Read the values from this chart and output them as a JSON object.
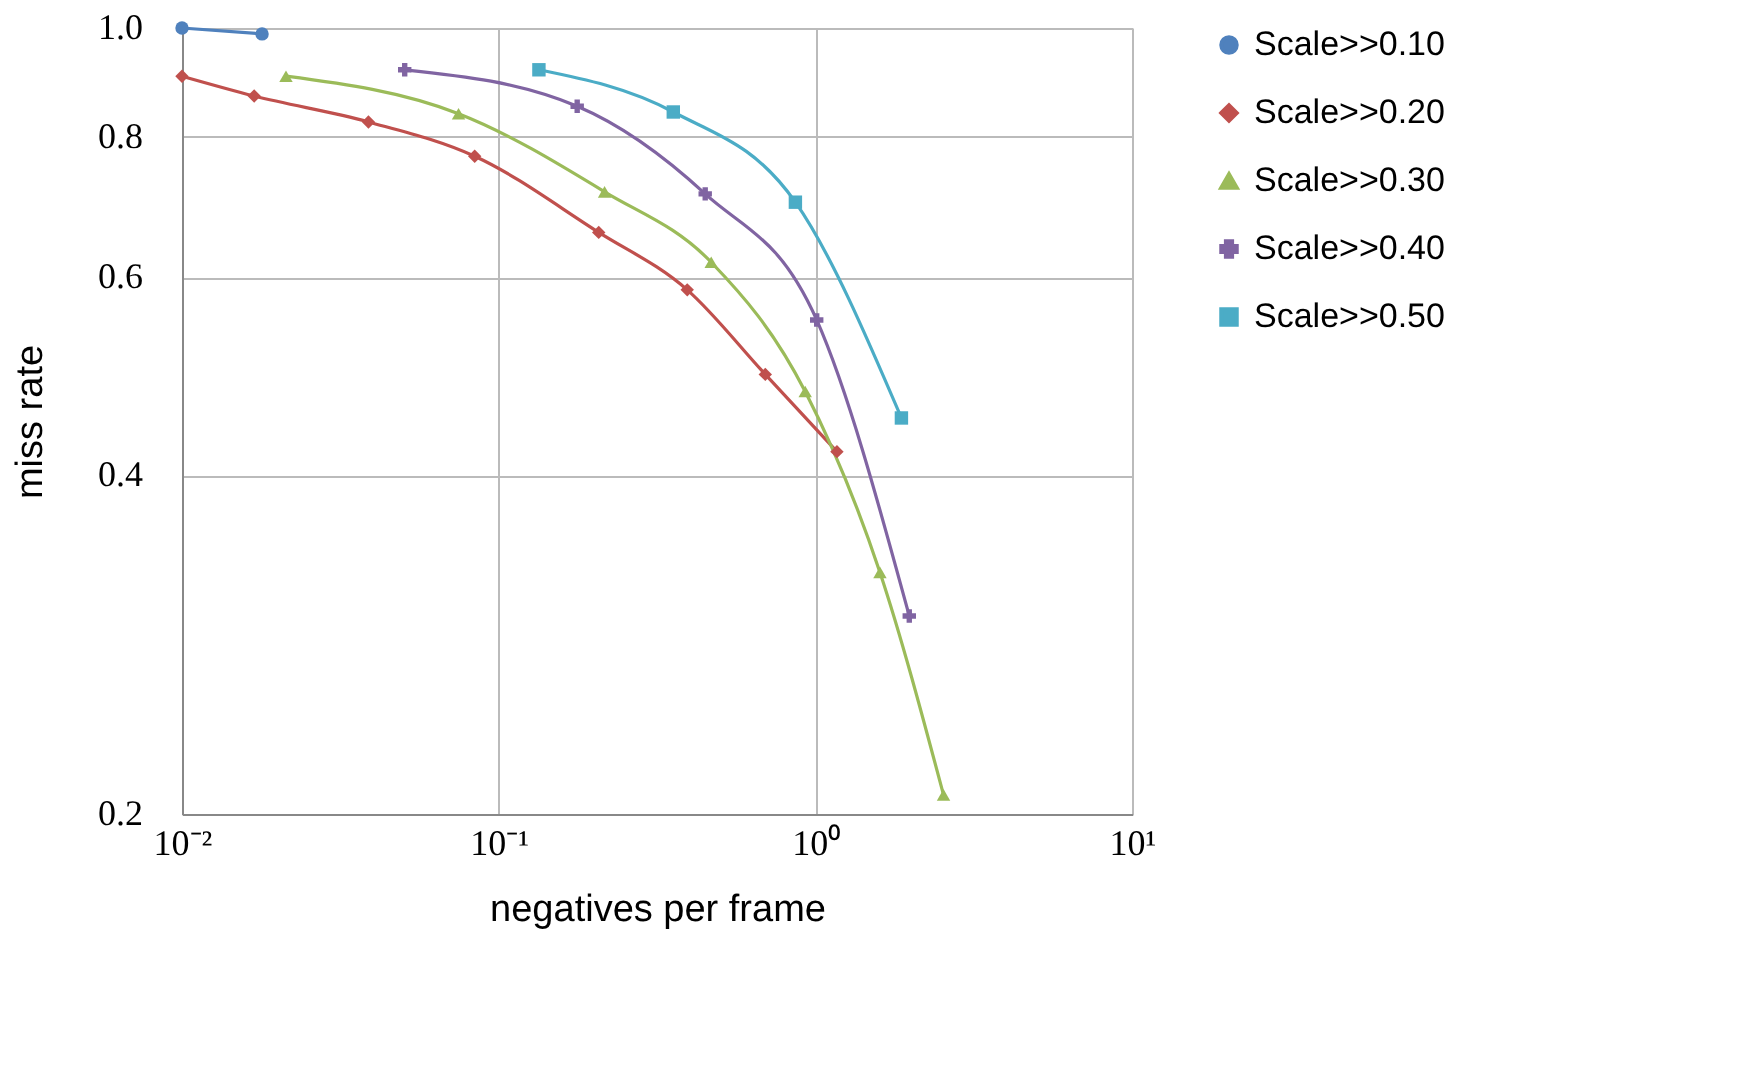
{
  "chart_data": {
    "type": "line",
    "xlabel": "negatives per frame",
    "ylabel": "miss rate",
    "log": "xy",
    "grid": true,
    "legend": "right",
    "xlim": [
      0.01,
      10
    ],
    "xticks": [
      {
        "value": 0.01,
        "label": "10⁻²"
      },
      {
        "value": 0.1,
        "label": "10⁻¹"
      },
      {
        "value": 1,
        "label": "10⁰"
      },
      {
        "value": 10,
        "label": "10¹"
      }
    ],
    "ylim": [
      0.2,
      1.0
    ],
    "yticks": [
      {
        "value": 0.2,
        "label": "0.2"
      },
      {
        "value": 0.4,
        "label": "0.4"
      },
      {
        "value": 0.6,
        "label": "0.6"
      },
      {
        "value": 0.8,
        "label": "0.8"
      },
      {
        "value": 1.0,
        "label": "1.0"
      }
    ],
    "series": [
      {
        "name": "Scale>>0.10",
        "color": "#4f81bd",
        "marker": "circle",
        "x": [
          0.01,
          0.0179
        ],
        "values": [
          1.0,
          0.988
        ]
      },
      {
        "name": "Scale>>0.20",
        "color": "#c0504d",
        "marker": "diamond",
        "x": [
          0.01,
          0.0169,
          0.0388,
          0.084,
          0.207,
          0.394,
          0.695,
          1.17
        ],
        "values": [
          0.906,
          0.87,
          0.825,
          0.769,
          0.658,
          0.585,
          0.492,
          0.42
        ]
      },
      {
        "name": "Scale>>0.30",
        "color": "#9bbb59",
        "marker": "triangle",
        "x": [
          0.0213,
          0.0747,
          0.216,
          0.469,
          0.929,
          1.6,
          2.54
        ],
        "values": [
          0.906,
          0.839,
          0.715,
          0.619,
          0.475,
          0.328,
          0.208
        ]
      },
      {
        "name": "Scale>>0.40",
        "color": "#8064a2",
        "marker": "cross",
        "x": [
          0.0505,
          0.177,
          0.449,
          1.01,
          1.98
        ],
        "values": [
          0.918,
          0.852,
          0.712,
          0.55,
          0.3
        ]
      },
      {
        "name": "Scale>>0.50",
        "color": "#4bacc6",
        "marker": "square",
        "x": [
          0.134,
          0.356,
          0.865,
          1.87
        ],
        "values": [
          0.918,
          0.842,
          0.7,
          0.45
        ]
      }
    ]
  }
}
